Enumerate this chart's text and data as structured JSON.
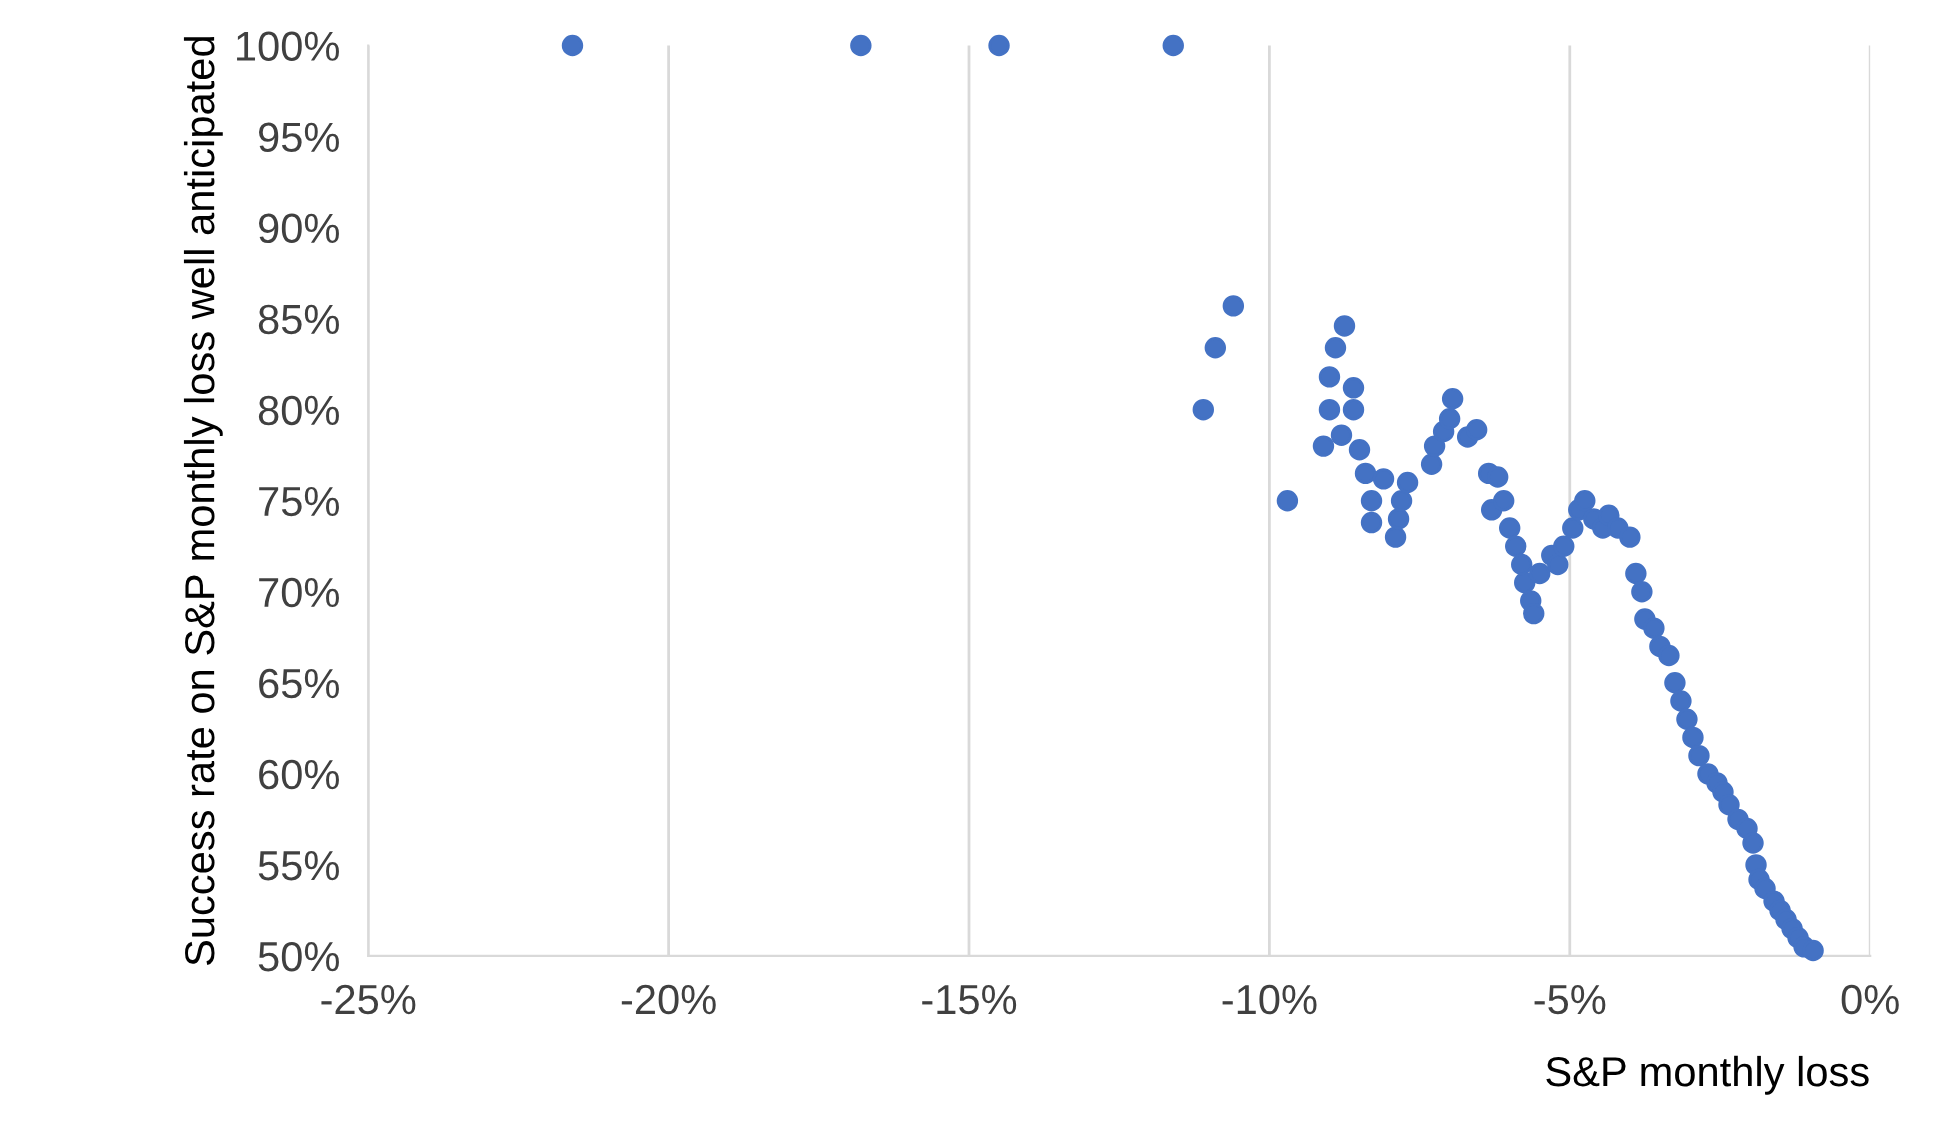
{
  "chart_data": {
    "type": "scatter",
    "xlabel": "S&P monthly loss",
    "ylabel": "Success rate on S&P monthly loss well anticipated",
    "x": [
      -21.6,
      -16.8,
      -14.5,
      -11.6,
      -10.6,
      -10.9,
      -11.1,
      -9.7,
      -9.1,
      -9.0,
      -9.0,
      -8.9,
      -8.75,
      -8.8,
      -8.6,
      -8.6,
      -8.5,
      -8.4,
      -8.3,
      -8.3,
      -8.1,
      -7.9,
      -7.85,
      -7.8,
      -7.7,
      -7.3,
      -7.25,
      -7.1,
      -7.0,
      -6.95,
      -6.7,
      -6.55,
      -6.35,
      -6.2,
      -6.3,
      -6.1,
      -6.0,
      -5.9,
      -5.8,
      -5.75,
      -5.65,
      -5.6,
      -5.5,
      -5.3,
      -5.2,
      -5.1,
      -4.95,
      -4.85,
      -4.75,
      -4.6,
      -4.45,
      -4.35,
      -4.2,
      -4.0,
      -3.9,
      -3.8,
      -3.75,
      -3.6,
      -3.5,
      -3.35,
      -3.25,
      -3.15,
      -3.05,
      -2.95,
      -2.85,
      -2.7,
      -2.55,
      -2.45,
      -2.35,
      -2.2,
      -2.05,
      -1.95,
      -1.9,
      -1.85,
      -1.75,
      -1.6,
      -1.5,
      -1.4,
      -1.3,
      -1.2,
      -1.1,
      -0.95
    ],
    "values": [
      100,
      100,
      100,
      100,
      85.7,
      83.4,
      80,
      75,
      78,
      80,
      81.8,
      83.4,
      84.6,
      78.6,
      81.2,
      80,
      77.8,
      76.5,
      75,
      73.8,
      76.2,
      73,
      74,
      75,
      76,
      77,
      78,
      78.8,
      79.5,
      80.6,
      78.5,
      78.9,
      76.5,
      76.3,
      74.5,
      75,
      73.5,
      72.5,
      71.5,
      70.5,
      69.5,
      68.8,
      71,
      72,
      71.5,
      72.5,
      73.5,
      74.5,
      75,
      74,
      73.5,
      74.2,
      73.5,
      73,
      71,
      70,
      68.5,
      68,
      67,
      66.5,
      65,
      64,
      63,
      62,
      61,
      60,
      59.5,
      59,
      58.3,
      57.5,
      57,
      56.2,
      55,
      54.2,
      53.7,
      53,
      52.5,
      52,
      51.5,
      51,
      50.5,
      50.3
    ],
    "color": "#4472c4",
    "marker": "circle",
    "grid": "x",
    "xlim": [
      -25,
      0
    ],
    "xticks": [
      {
        "value": -25,
        "label": "-25%"
      },
      {
        "value": -20,
        "label": "-20%"
      },
      {
        "value": -15,
        "label": "-15%"
      },
      {
        "value": -10,
        "label": "-10%"
      },
      {
        "value": -5,
        "label": "-5%"
      },
      {
        "value": 0,
        "label": "0%"
      }
    ],
    "ylim": [
      50,
      100
    ],
    "yticks": [
      {
        "value": 50,
        "label": "50%"
      },
      {
        "value": 55,
        "label": "55%"
      },
      {
        "value": 60,
        "label": "60%"
      },
      {
        "value": 65,
        "label": "65%"
      },
      {
        "value": 70,
        "label": "70%"
      },
      {
        "value": 75,
        "label": "75%"
      },
      {
        "value": 80,
        "label": "80%"
      },
      {
        "value": 85,
        "label": "85%"
      },
      {
        "value": 90,
        "label": "90%"
      },
      {
        "value": 95,
        "label": "95%"
      },
      {
        "value": 100,
        "label": "100%"
      }
    ]
  }
}
